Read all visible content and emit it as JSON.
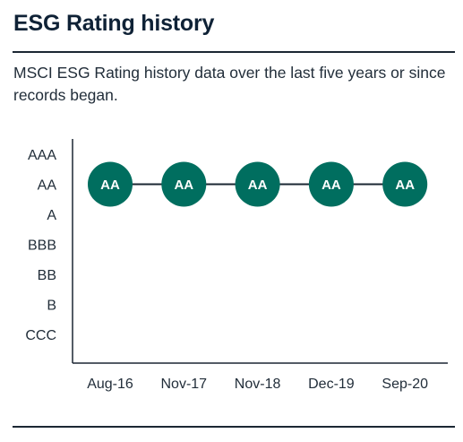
{
  "header": {
    "title": "ESG Rating history",
    "description": "MSCI ESG Rating history data over the last five years or since records began."
  },
  "colors": {
    "accent": "#006e5f",
    "axis": "#1b2733",
    "text": "#222e3a"
  },
  "chart_data": {
    "type": "line",
    "title": "",
    "xlabel": "",
    "ylabel": "",
    "y_categories": [
      "CCC",
      "B",
      "BB",
      "BBB",
      "A",
      "AA",
      "AAA"
    ],
    "categories": [
      "Aug-16",
      "Nov-17",
      "Nov-18",
      "Dec-19",
      "Sep-20"
    ],
    "series": [
      {
        "values": [
          "AA",
          "AA",
          "AA",
          "AA",
          "AA"
        ]
      }
    ],
    "grid": false,
    "legend": "none"
  }
}
